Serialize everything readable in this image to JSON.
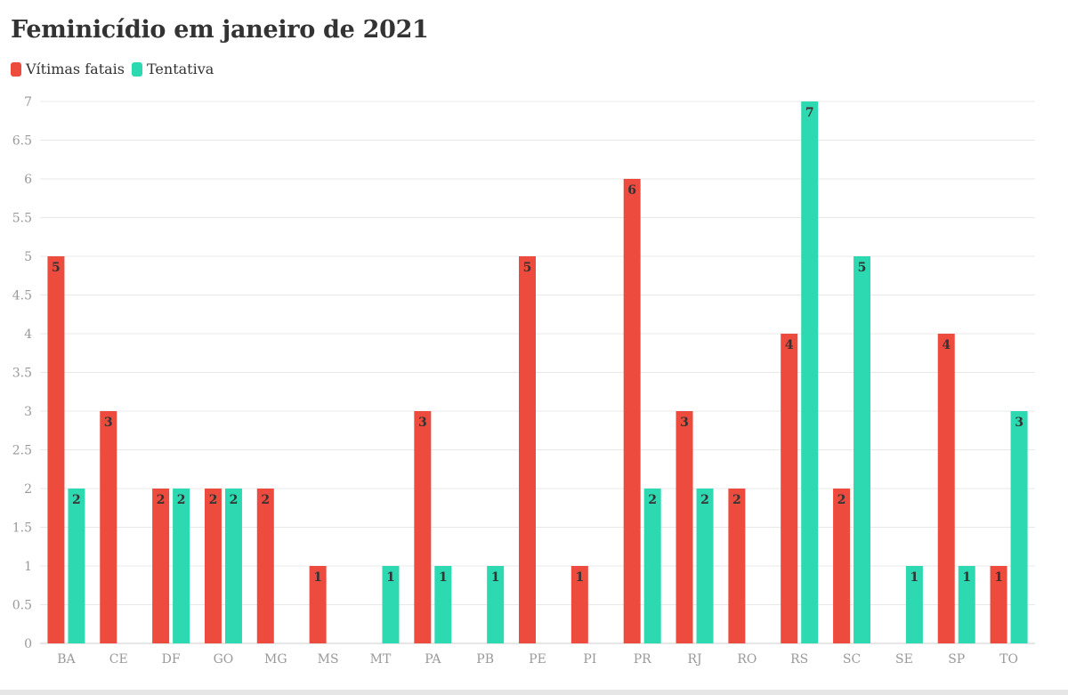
{
  "chart_data": {
    "type": "bar",
    "title": "Feminicídio em janeiro de 2021",
    "categories": [
      "BA",
      "CE",
      "DF",
      "GO",
      "MG",
      "MS",
      "MT",
      "PA",
      "PB",
      "PE",
      "PI",
      "PR",
      "RJ",
      "RO",
      "RS",
      "SC",
      "SE",
      "SP",
      "TO"
    ],
    "series": [
      {
        "name": "Vítimas fatais",
        "color": "#ee4b3f",
        "values": [
          5,
          3,
          2,
          2,
          2,
          1,
          null,
          3,
          null,
          5,
          1,
          6,
          3,
          2,
          4,
          2,
          null,
          4,
          1
        ]
      },
      {
        "name": "Tentativa",
        "color": "#2dd9b0",
        "values": [
          2,
          null,
          2,
          2,
          null,
          null,
          1,
          1,
          1,
          null,
          null,
          2,
          2,
          null,
          7,
          5,
          1,
          1,
          3
        ]
      }
    ],
    "yticks": [
      "0",
      "0.5",
      "1",
      "1.5",
      "2",
      "2.5",
      "3",
      "3.5",
      "4",
      "4.5",
      "5",
      "5.5",
      "6",
      "6.5",
      "7"
    ],
    "ylim": [
      0,
      7
    ],
    "grid": true,
    "legend_position": "top-left",
    "xlabel": "",
    "ylabel": ""
  }
}
